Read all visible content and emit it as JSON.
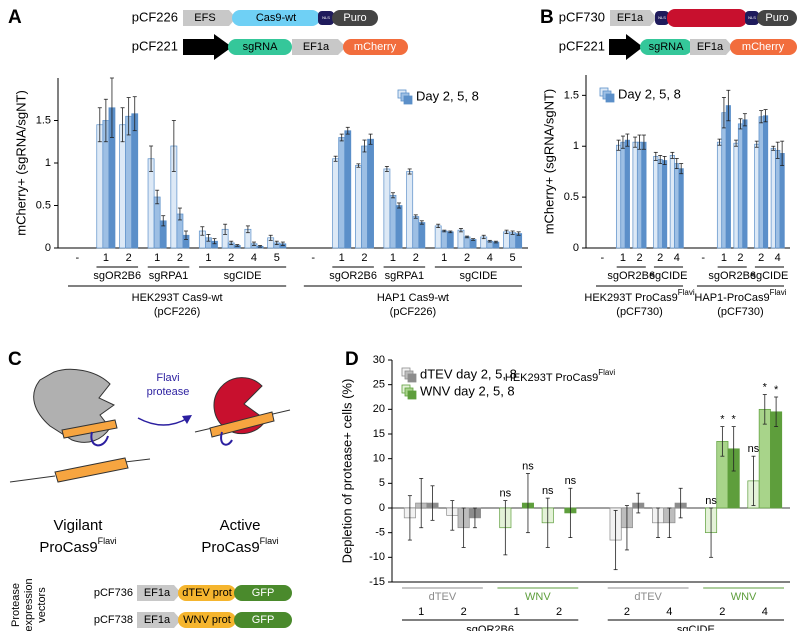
{
  "panel_labels": [
    "A",
    "B",
    "C",
    "D"
  ],
  "constructs_a": [
    {
      "name": "pCF226",
      "parts": [
        "EFS",
        "Cas9-wt",
        "NLS",
        "Puro"
      ]
    },
    {
      "name": "pCF221",
      "parts": [
        "sgRNA",
        "EF1a",
        "mCherry"
      ]
    }
  ],
  "constructs_b": [
    {
      "name": "pCF730",
      "parts": [
        "EF1a",
        "NLS",
        "NLS",
        "Puro"
      ]
    },
    {
      "name": "pCF221",
      "parts": [
        "sgRNA",
        "EF1a",
        "mCherry"
      ]
    }
  ],
  "panel_c": {
    "arrow_label": [
      "Flavi",
      "protease"
    ],
    "states": [
      {
        "label": "Vigilant",
        "name": "ProCas9",
        "sup": "Flavi"
      },
      {
        "label": "Active",
        "name": "ProCas9",
        "sup": "Flavi"
      }
    ],
    "vectors_label": [
      "Protease",
      "expression",
      "vectors"
    ],
    "vectors": [
      {
        "name": "pCF736",
        "parts": [
          "EF1a",
          "dTEV prot",
          "GFP"
        ]
      },
      {
        "name": "pCF738",
        "parts": [
          "EF1a",
          "WNV prot",
          "GFP"
        ]
      }
    ]
  },
  "chart_data": [
    {
      "type": "bar",
      "ylabel": "mCherry+ (sgRNA/sgNT)",
      "ylim": [
        0,
        2
      ],
      "yticks": [
        0,
        0.5,
        1,
        1.5
      ],
      "legend": "Day 2, 5, 8",
      "colors": [
        "#dde9f6",
        "#9dbfe4",
        "#5b8fc9"
      ],
      "blocks": [
        {
          "label": "HEK293T Cas9-wt",
          "note": "(pCF226)",
          "groups": [
            {
              "label": null,
              "categories": [
                "-"
              ],
              "values": [
                [
                  null,
                  null,
                  null
                ]
              ],
              "errors": [
                [
                  null,
                  null,
                  null
                ]
              ]
            },
            {
              "label": "sgOR2B6",
              "categories": [
                "1",
                "2"
              ],
              "values": [
                [
                  1.45,
                  1.5,
                  1.65
                ],
                [
                  1.45,
                  1.55,
                  1.58
                ]
              ],
              "errors": [
                [
                  0.2,
                  0.25,
                  0.35
                ],
                [
                  0.2,
                  0.22,
                  0.2
                ]
              ]
            },
            {
              "label": "sgRPA1",
              "categories": [
                "1",
                "2"
              ],
              "values": [
                [
                  1.05,
                  0.6,
                  0.32
                ],
                [
                  1.2,
                  0.4,
                  0.15
                ]
              ],
              "errors": [
                [
                  0.15,
                  0.08,
                  0.06
                ],
                [
                  0.3,
                  0.07,
                  0.05
                ]
              ]
            },
            {
              "label": "sgCIDE",
              "categories": [
                "1",
                "2",
                "4",
                "5"
              ],
              "values": [
                [
                  0.2,
                  0.12,
                  0.08
                ],
                [
                  0.22,
                  0.06,
                  0.03
                ],
                [
                  0.22,
                  0.05,
                  0.02
                ],
                [
                  0.12,
                  0.06,
                  0.05
                ]
              ],
              "errors": [
                [
                  0.05,
                  0.04,
                  0.03
                ],
                [
                  0.06,
                  0.02,
                  0.01
                ],
                [
                  0.04,
                  0.02,
                  0.01
                ],
                [
                  0.03,
                  0.02,
                  0.02
                ]
              ]
            }
          ]
        },
        {
          "label": "HAP1 Cas9-wt",
          "note": "(pCF226)",
          "groups": [
            {
              "label": null,
              "categories": [
                "-"
              ],
              "values": [
                [
                  null,
                  null,
                  null
                ]
              ],
              "errors": [
                [
                  null,
                  null,
                  null
                ]
              ]
            },
            {
              "label": "sgOR2B6",
              "categories": [
                "1",
                "2"
              ],
              "values": [
                [
                  1.05,
                  1.3,
                  1.38
                ],
                [
                  0.97,
                  1.2,
                  1.28
                ]
              ],
              "errors": [
                [
                  0.03,
                  0.04,
                  0.04
                ],
                [
                  0.02,
                  0.07,
                  0.06
                ]
              ]
            },
            {
              "label": "sgRPA1",
              "categories": [
                "1",
                "2"
              ],
              "values": [
                [
                  0.93,
                  0.62,
                  0.5
                ],
                [
                  0.9,
                  0.37,
                  0.3
                ]
              ],
              "errors": [
                [
                  0.03,
                  0.03,
                  0.03
                ],
                [
                  0.03,
                  0.02,
                  0.02
                ]
              ]
            },
            {
              "label": "sgCIDE",
              "categories": [
                "1",
                "2",
                "4",
                "5"
              ],
              "values": [
                [
                  0.26,
                  0.2,
                  0.19
                ],
                [
                  0.21,
                  0.13,
                  0.1
                ],
                [
                  0.13,
                  0.08,
                  0.07
                ],
                [
                  0.19,
                  0.18,
                  0.17
                ]
              ],
              "errors": [
                [
                  0.02,
                  0.01,
                  0.01
                ],
                [
                  0.02,
                  0.01,
                  0.01
                ],
                [
                  0.02,
                  0.01,
                  0.01
                ],
                [
                  0.02,
                  0.02,
                  0.02
                ]
              ]
            }
          ]
        }
      ]
    },
    {
      "type": "bar",
      "ylabel": "mCherry+ (sgRNA/sgNT)",
      "ylim": [
        0,
        1.7
      ],
      "yticks": [
        0,
        0.5,
        1,
        1.5
      ],
      "legend": "Day 2, 5, 8",
      "colors": [
        "#dde9f6",
        "#9dbfe4",
        "#5b8fc9"
      ],
      "blocks": [
        {
          "label": "HEK293T ProCas9",
          "sup": "Flavi",
          "note": "(pCF730)",
          "groups": [
            {
              "label": null,
              "categories": [
                "-"
              ],
              "values": [
                [
                  null,
                  null,
                  null
                ]
              ],
              "errors": [
                [
                  null,
                  null,
                  null
                ]
              ]
            },
            {
              "label": "sgOR2B6",
              "categories": [
                "1",
                "2"
              ],
              "values": [
                [
                  1.01,
                  1.04,
                  1.06
                ],
                [
                  1.04,
                  1.04,
                  1.04
                ]
              ],
              "errors": [
                [
                  0.05,
                  0.06,
                  0.06
                ],
                [
                  0.05,
                  0.07,
                  0.07
                ]
              ]
            },
            {
              "label": "sgCIDE",
              "categories": [
                "2",
                "4"
              ],
              "values": [
                [
                  0.9,
                  0.87,
                  0.86
                ],
                [
                  0.91,
                  0.83,
                  0.78
                ]
              ],
              "errors": [
                [
                  0.04,
                  0.04,
                  0.04
                ],
                [
                  0.03,
                  0.05,
                  0.05
                ]
              ]
            }
          ]
        },
        {
          "label": "HAP1-ProCas9",
          "sup": "Flavi",
          "note": "(pCF730)",
          "groups": [
            {
              "label": null,
              "categories": [
                "-"
              ],
              "values": [
                [
                  null,
                  null,
                  null
                ]
              ],
              "errors": [
                [
                  null,
                  null,
                  null
                ]
              ]
            },
            {
              "label": "sgOR2B6",
              "categories": [
                "1",
                "2"
              ],
              "values": [
                [
                  1.04,
                  1.33,
                  1.4
                ],
                [
                  1.03,
                  1.22,
                  1.26
                ]
              ],
              "errors": [
                [
                  0.03,
                  0.15,
                  0.15
                ],
                [
                  0.03,
                  0.05,
                  0.06
                ]
              ]
            },
            {
              "label": "sgCIDE",
              "categories": [
                "2",
                "4"
              ],
              "values": [
                [
                  1.02,
                  1.29,
                  1.3
                ],
                [
                  0.98,
                  0.96,
                  0.93
                ]
              ],
              "errors": [
                [
                  0.03,
                  0.06,
                  0.06
                ],
                [
                  0.02,
                  0.08,
                  0.12
                ]
              ]
            }
          ]
        }
      ]
    },
    {
      "type": "bar",
      "title": "HEK293T ProCas9",
      "title_sup": "Flavi",
      "ylabel": "Depletion of protease+ cells (%)",
      "ylim": [
        -15,
        30
      ],
      "yticks": [
        -15,
        -10,
        -5,
        0,
        5,
        10,
        15,
        20,
        25,
        30
      ],
      "legend": [
        {
          "label": "dTEV day 2, 5, 8",
          "colors": [
            "#f2f2f2",
            "#bdbdbd",
            "#8c8c8c"
          ]
        },
        {
          "label": "WNV day 2, 5, 8",
          "colors": [
            "#e4f2d8",
            "#a8d48a",
            "#5e9e3c"
          ]
        }
      ],
      "blocks": [
        {
          "label": "sgOR2B6",
          "groups": [
            {
              "label": "dTEV",
              "colors": [
                "#f2f2f2",
                "#bdbdbd",
                "#8c8c8c"
              ],
              "categories": [
                "1",
                "2"
              ],
              "values": [
                [
                  -2,
                  1,
                  1
                ],
                [
                  -1.5,
                  -4,
                  -2
                ]
              ],
              "errors": [
                [
                  4.5,
                  5,
                  3.5
                ],
                [
                  3,
                  4,
                  2
                ]
              ]
            },
            {
              "label": "WNV",
              "colors": [
                "#e4f2d8",
                "#a8d48a",
                "#5e9e3c"
              ],
              "categories": [
                "1",
                "2"
              ],
              "values": [
                [
                  -4,
                  0,
                  1
                ],
                [
                  -3,
                  0,
                  -1
                ]
              ],
              "errors": [
                [
                  5.5,
                  null,
                  6
                ],
                [
                  5,
                  null,
                  5
                ]
              ],
              "value_labels": [
                [
                  "ns",
                  null,
                  "ns"
                ],
                [
                  "ns",
                  null,
                  "ns"
                ]
              ]
            }
          ]
        },
        {
          "label": "sgCIDE",
          "groups": [
            {
              "label": "dTEV",
              "colors": [
                "#f2f2f2",
                "#bdbdbd",
                "#8c8c8c"
              ],
              "categories": [
                "2",
                "4"
              ],
              "values": [
                [
                  -6.5,
                  -4,
                  1
                ],
                [
                  -3,
                  -3,
                  1
                ]
              ],
              "errors": [
                [
                  6,
                  4.5,
                  2
                ],
                [
                  3,
                  3,
                  3
                ]
              ]
            },
            {
              "label": "WNV",
              "colors": [
                "#e4f2d8",
                "#a8d48a",
                "#5e9e3c"
              ],
              "categories": [
                "2",
                "4"
              ],
              "values": [
                [
                  -5,
                  13.5,
                  12
                ],
                [
                  5.5,
                  20,
                  19.5
                ]
              ],
              "errors": [
                [
                  5,
                  3,
                  4.5
                ],
                [
                  5,
                  3,
                  3
                ]
              ],
              "value_labels": [
                [
                  "ns",
                  "*",
                  "*"
                ],
                [
                  "ns",
                  "*",
                  "*"
                ]
              ]
            }
          ]
        }
      ]
    }
  ]
}
